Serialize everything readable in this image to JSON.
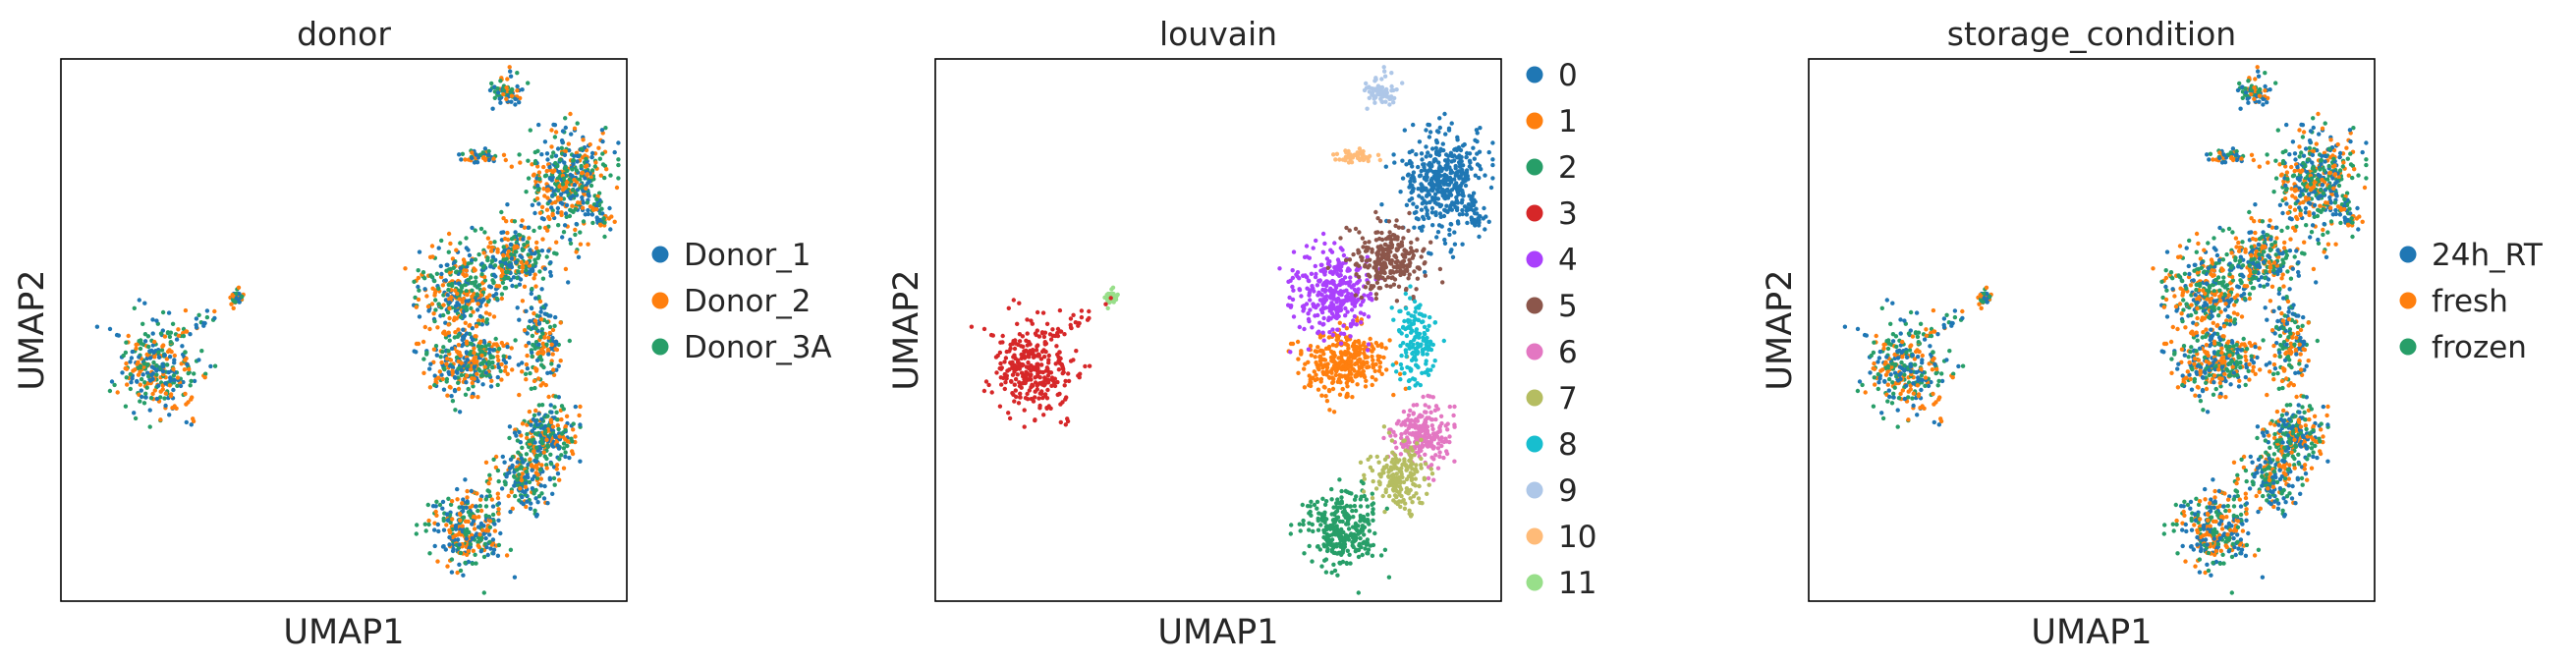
{
  "chart_data": [
    {
      "type": "scatter",
      "title": "donor",
      "xlabel": "UMAP1",
      "ylabel": "UMAP2",
      "grid": false,
      "legend_position": "right",
      "series": [
        {
          "name": "Donor_1",
          "color": "#1f77b4"
        },
        {
          "name": "Donor_2",
          "color": "#ff7f0e"
        },
        {
          "name": "Donor_3A",
          "color": "#279e68"
        }
      ],
      "coloring": "mixed"
    },
    {
      "type": "scatter",
      "title": "louvain",
      "xlabel": "UMAP1",
      "ylabel": "UMAP2",
      "grid": false,
      "legend_position": "right",
      "series": [
        {
          "name": "0",
          "color": "#1f77b4"
        },
        {
          "name": "1",
          "color": "#ff7f0e"
        },
        {
          "name": "2",
          "color": "#279e68"
        },
        {
          "name": "3",
          "color": "#d62728"
        },
        {
          "name": "4",
          "color": "#aa40fc"
        },
        {
          "name": "5",
          "color": "#8c564b"
        },
        {
          "name": "6",
          "color": "#e377c2"
        },
        {
          "name": "7",
          "color": "#b5bd61"
        },
        {
          "name": "8",
          "color": "#17becf"
        },
        {
          "name": "9",
          "color": "#aec7e8"
        },
        {
          "name": "10",
          "color": "#ffbb78"
        },
        {
          "name": "11",
          "color": "#98df8a"
        }
      ],
      "coloring": "by_cluster"
    },
    {
      "type": "scatter",
      "title": "storage_condition",
      "xlabel": "UMAP1",
      "ylabel": "UMAP2",
      "grid": false,
      "legend_position": "right",
      "series": [
        {
          "name": "24h_RT",
          "color": "#1f77b4"
        },
        {
          "name": "fresh",
          "color": "#ff7f0e"
        },
        {
          "name": "frozen",
          "color": "#279e68"
        }
      ],
      "coloring": "mixed"
    }
  ]
}
